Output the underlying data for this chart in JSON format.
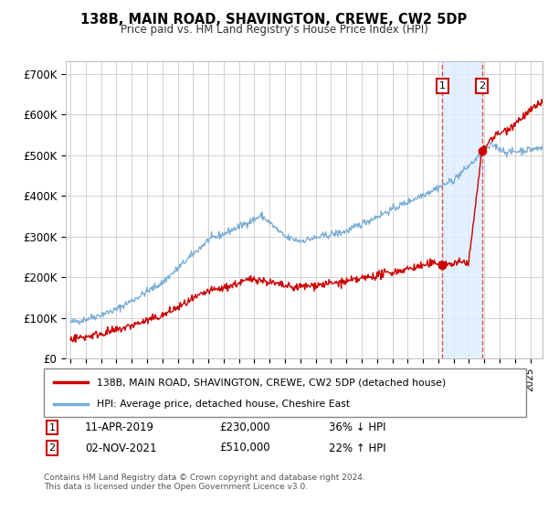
{
  "title": "138B, MAIN ROAD, SHAVINGTON, CREWE, CW2 5DP",
  "subtitle": "Price paid vs. HM Land Registry's House Price Index (HPI)",
  "ylabel_values": [
    "£0",
    "£100K",
    "£200K",
    "£300K",
    "£400K",
    "£500K",
    "£600K",
    "£700K"
  ],
  "yticks": [
    0,
    100000,
    200000,
    300000,
    400000,
    500000,
    600000,
    700000
  ],
  "ylim": [
    0,
    730000
  ],
  "xlim_start": 1994.7,
  "xlim_end": 2025.8,
  "line1_color": "#cc0000",
  "line2_color": "#7aadd4",
  "marker_color": "#cc0000",
  "sale1_x": 2019.27,
  "sale1_y": 230000,
  "sale2_x": 2021.84,
  "sale2_y": 510000,
  "legend_line1": "138B, MAIN ROAD, SHAVINGTON, CREWE, CW2 5DP (detached house)",
  "legend_line2": "HPI: Average price, detached house, Cheshire East",
  "annotation1_date": "11-APR-2019",
  "annotation1_price": "£230,000",
  "annotation1_hpi": "36% ↓ HPI",
  "annotation2_date": "02-NOV-2021",
  "annotation2_price": "£510,000",
  "annotation2_hpi": "22% ↑ HPI",
  "footnote": "Contains HM Land Registry data © Crown copyright and database right 2024.\nThis data is licensed under the Open Government Licence v3.0.",
  "background_color": "#ffffff",
  "grid_color": "#cccccc",
  "shading_color": "#ddeeff"
}
